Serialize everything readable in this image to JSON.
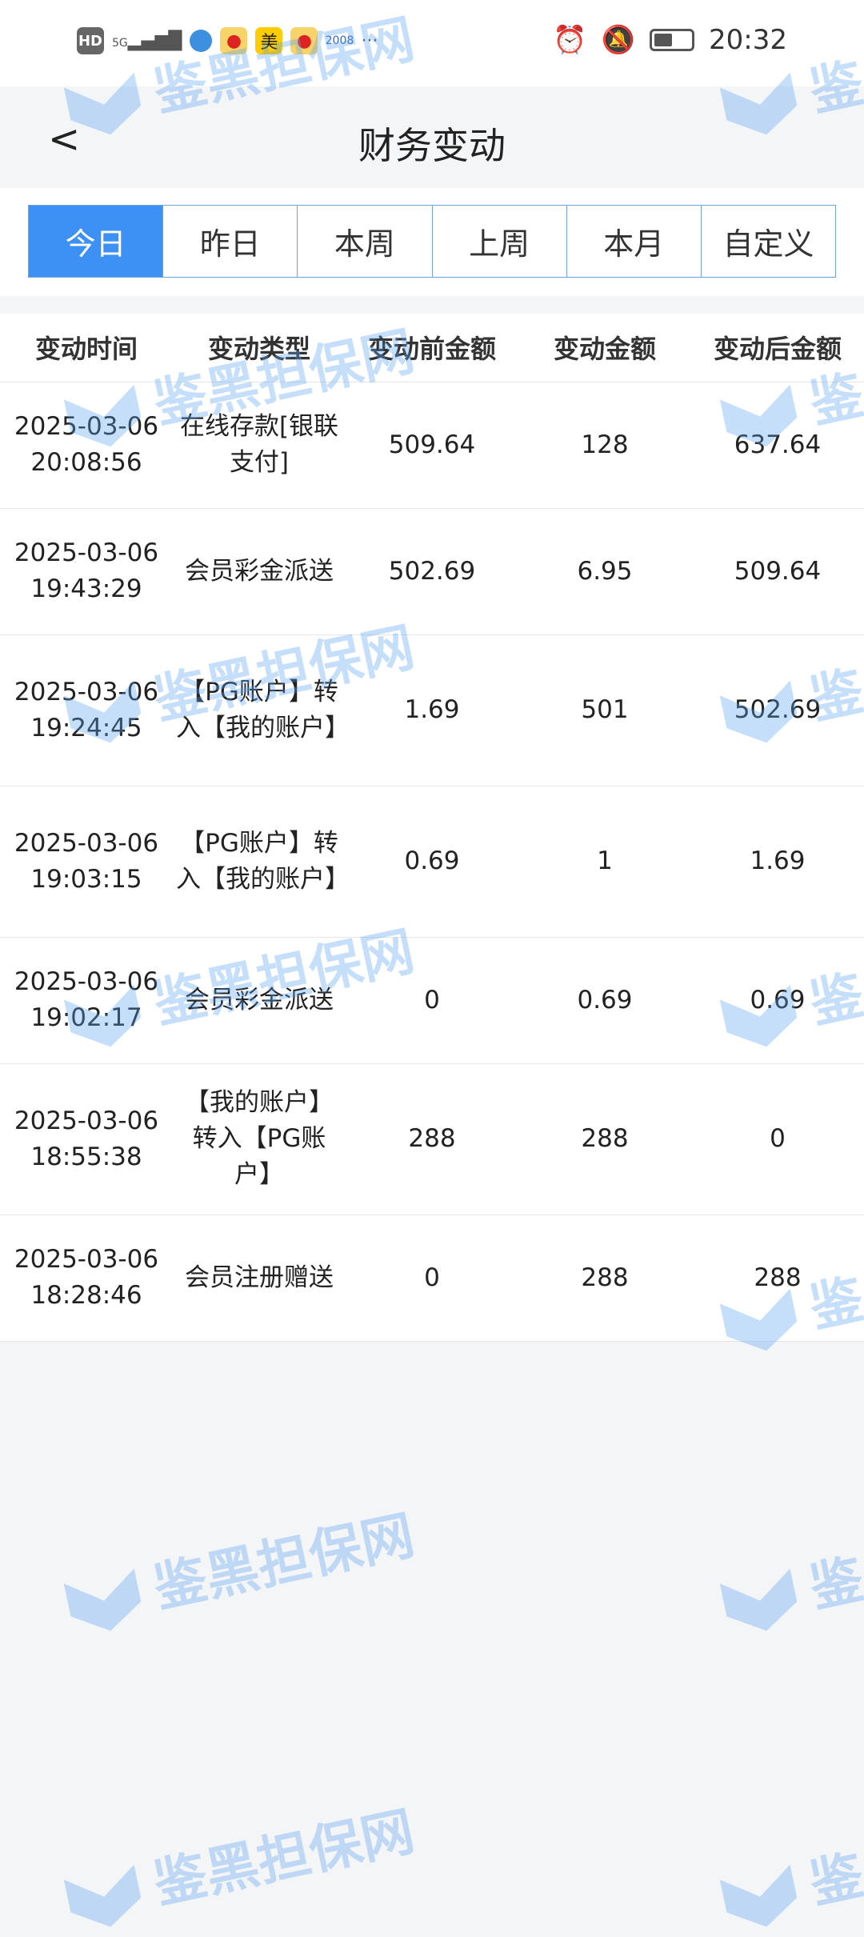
{
  "status_bar": {
    "time": "20:32",
    "network": "5G",
    "hd": "HD",
    "meituan": "美"
  },
  "header": {
    "title": "财务变动",
    "back_label": "<"
  },
  "tabs": [
    {
      "label": "今日",
      "active": true
    },
    {
      "label": "昨日"
    },
    {
      "label": "本周"
    },
    {
      "label": "上周"
    },
    {
      "label": "本月"
    },
    {
      "label": "自定义"
    }
  ],
  "table": {
    "columns": [
      "变动时间",
      "变动类型",
      "变动前金额",
      "变动金额",
      "变动后金额"
    ],
    "rows": [
      [
        "2025-03-06 20:08:56",
        "在线存款[银联支付]",
        "509.64",
        "128",
        "637.64"
      ],
      [
        "2025-03-06 19:43:29",
        "会员彩金派送",
        "502.69",
        "6.95",
        "509.64"
      ],
      [
        "2025-03-06 19:24:45",
        "【PG账户】转入【我的账户】",
        "1.69",
        "501",
        "502.69"
      ],
      [
        "2025-03-06 19:03:15",
        "【PG账户】转入【我的账户】",
        "0.69",
        "1",
        "1.69"
      ],
      [
        "2025-03-06 19:02:17",
        "会员彩金派送",
        "0",
        "0.69",
        "0.69"
      ],
      [
        "2025-03-06 18:55:38",
        "【我的账户】转入【PG账户】",
        "288",
        "288",
        "0"
      ],
      [
        "2025-03-06 18:28:46",
        "会员注册赠送",
        "0",
        "288",
        "288"
      ]
    ]
  },
  "watermark": "鉴黑担保网",
  "colors": {
    "accent": "#3d91f5",
    "background": "#f4f5f7"
  }
}
